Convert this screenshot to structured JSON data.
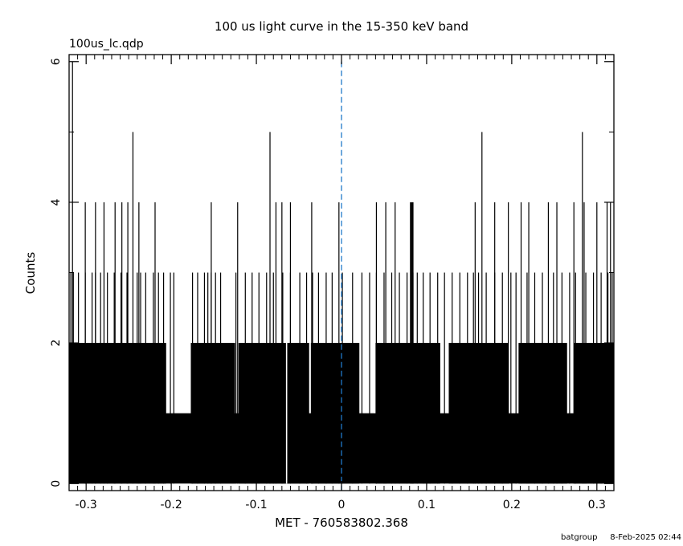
{
  "chart_data": {
    "type": "bar",
    "title": "100 us light curve in the 15-350 keV band",
    "file_label": "100us_lc.qdp",
    "xlabel": "MET - 760583802.368",
    "ylabel": "Counts",
    "xlim": [
      -0.32,
      0.32
    ],
    "ylim": [
      -0.1,
      6.1
    ],
    "xticks": [
      -0.3,
      -0.2,
      -0.1,
      0,
      0.1,
      0.2,
      0.3
    ],
    "xtick_labels": [
      "-0.3",
      "-0.2",
      "-0.1",
      "0",
      "0.1",
      "0.2",
      "0.3"
    ],
    "yticks": [
      0,
      2,
      4,
      6
    ],
    "ytick_labels": [
      "0",
      "2",
      "4",
      "6"
    ],
    "bin_width": 0.0001,
    "baseline_counts": 1,
    "zero_bins": [
      -0.0645
    ],
    "two_count_regions": [
      [
        -0.32,
        -0.206
      ],
      [
        -0.177,
        -0.125
      ],
      [
        -0.121,
        -0.038
      ],
      [
        -0.036,
        0.021
      ],
      [
        0.04,
        0.116
      ],
      [
        0.126,
        0.196
      ],
      [
        0.208,
        0.265
      ],
      [
        0.273,
        0.32
      ]
    ],
    "three_count_bins": [
      -0.318,
      -0.315,
      -0.309,
      -0.301,
      -0.293,
      -0.289,
      -0.283,
      -0.275,
      -0.267,
      -0.259,
      -0.252,
      -0.24,
      -0.236,
      -0.23,
      -0.221,
      -0.215,
      -0.209,
      -0.201,
      -0.197,
      -0.175,
      -0.169,
      -0.161,
      -0.157,
      -0.153,
      -0.148,
      -0.142,
      -0.124,
      -0.113,
      -0.105,
      -0.097,
      -0.088,
      -0.08,
      -0.069,
      -0.06,
      -0.049,
      -0.041,
      -0.034,
      -0.027,
      -0.018,
      -0.011,
      0.001,
      0.013,
      0.024,
      0.033,
      0.041,
      0.05,
      0.059,
      0.068,
      0.077,
      0.084,
      0.089,
      0.096,
      0.104,
      0.113,
      0.121,
      0.13,
      0.139,
      0.148,
      0.155,
      0.161,
      0.17,
      0.18,
      0.189,
      0.199,
      0.205,
      0.218,
      0.227,
      0.236,
      0.249,
      0.259,
      0.268,
      0.275,
      0.287,
      0.296,
      0.305,
      0.313,
      0.318
    ],
    "four_count_bins": [
      -0.301,
      -0.289,
      -0.279,
      -0.266,
      -0.258,
      -0.251,
      -0.238,
      -0.219,
      -0.153,
      -0.122,
      -0.077,
      -0.07,
      -0.06,
      -0.035,
      -0.003,
      0.041,
      0.052,
      0.063,
      0.081,
      0.082,
      0.083,
      0.084,
      0.157,
      0.18,
      0.196,
      0.211,
      0.22,
      0.243,
      0.253,
      0.273,
      0.285,
      0.3,
      0.312,
      0.316
    ],
    "five_count_bins": [
      -0.245,
      -0.084,
      0.165,
      0.283
    ],
    "six_count_bins": [
      -0.316
    ],
    "reference_line": {
      "x": 0,
      "style": "dashed",
      "color": "#1f78c8"
    },
    "bar_color": "#000000",
    "grid": false,
    "legend": "none"
  },
  "footer": {
    "user": "batgroup",
    "timestamp": "8-Feb-2025 02:44"
  }
}
